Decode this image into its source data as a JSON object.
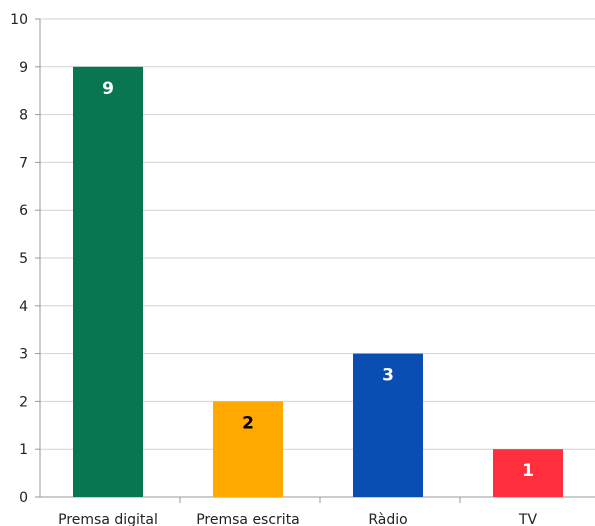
{
  "chart_data": {
    "type": "bar",
    "title": "",
    "xlabel": "",
    "ylabel": "",
    "categories": [
      "Premsa digital",
      "Premsa escrita",
      "Ràdio",
      "TV"
    ],
    "values": [
      9,
      2,
      3,
      1
    ],
    "data_labels": [
      "9",
      "2",
      "3",
      "1"
    ],
    "colors": [
      "#077651",
      "#FFA800",
      "#0A4DB3",
      "#FF2F3D"
    ],
    "label_colors": [
      "#ffffff",
      "#000000",
      "#ffffff",
      "#ffffff"
    ],
    "ylim": [
      0,
      10
    ],
    "yticks": [
      "0",
      "1",
      "2",
      "3",
      "4",
      "5",
      "6",
      "7",
      "8",
      "9",
      "10"
    ],
    "grid": true,
    "legend": "none"
  }
}
